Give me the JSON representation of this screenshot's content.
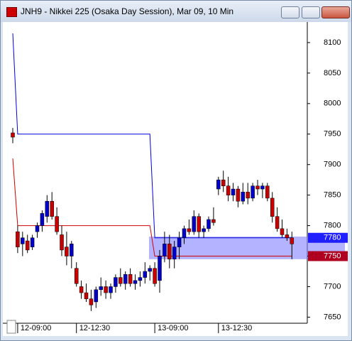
{
  "window_title": "JNH9 - Nikkei 225 (Osaka Day Session), Mar 09, 10 Min",
  "chart_data": {
    "type": "candlestick",
    "ylim": [
      7640,
      8129
    ],
    "yticks": [
      7650,
      7700,
      7750,
      7800,
      7850,
      7900,
      7950,
      8000,
      8050,
      8100
    ],
    "categories": [
      null,
      "12-09:00",
      null,
      null,
      null,
      null,
      null,
      null,
      null,
      null,
      null,
      null,
      null,
      "12-12:30",
      null,
      null,
      null,
      null,
      null,
      null,
      null,
      null,
      null,
      null,
      null,
      null,
      null,
      null,
      null,
      "13-09:00",
      null,
      null,
      null,
      null,
      null,
      null,
      null,
      null,
      null,
      null,
      null,
      null,
      "13-12:30",
      null,
      null,
      null,
      null,
      null,
      null,
      null,
      null,
      null,
      null,
      null,
      null,
      null,
      null,
      null
    ],
    "up_color": "#0000c8",
    "down_color": "#c80000",
    "open": [
      7952,
      7790,
      7770,
      7775,
      7765,
      7790,
      7800,
      7815,
      7840,
      7815,
      7785,
      7765,
      7750,
      7730,
      7700,
      7690,
      7680,
      7675,
      7695,
      7700,
      7690,
      7700,
      7715,
      7705,
      7720,
      7705,
      7710,
      7715,
      7725,
      7730,
      7710,
      7750,
      7770,
      7745,
      7765,
      7780,
      7795,
      7790,
      7815,
      7790,
      7795,
      7810,
      7860,
      7875,
      7865,
      7850,
      7860,
      7840,
      7855,
      7845,
      7865,
      7860,
      7865,
      7845,
      7815,
      7795,
      7785,
      7780
    ],
    "high": [
      7960,
      7800,
      7790,
      7785,
      7785,
      7805,
      7825,
      7850,
      7855,
      7830,
      7800,
      7790,
      7775,
      7740,
      7710,
      7705,
      7695,
      7700,
      7715,
      7710,
      7705,
      7720,
      7730,
      7725,
      7730,
      7720,
      7725,
      7740,
      7735,
      7740,
      7760,
      7790,
      7785,
      7775,
      7790,
      7800,
      7810,
      7825,
      7820,
      7800,
      7815,
      7830,
      7880,
      7890,
      7880,
      7870,
      7865,
      7870,
      7870,
      7870,
      7875,
      7870,
      7870,
      7855,
      7830,
      7810,
      7795,
      7790
    ],
    "low": [
      7935,
      7755,
      7750,
      7755,
      7760,
      7780,
      7790,
      7805,
      7810,
      7785,
      7750,
      7735,
      7730,
      7700,
      7680,
      7675,
      7660,
      7665,
      7685,
      7680,
      7680,
      7690,
      7700,
      7695,
      7700,
      7695,
      7700,
      7705,
      7710,
      7700,
      7690,
      7740,
      7730,
      7730,
      7745,
      7770,
      7785,
      7785,
      7780,
      7780,
      7790,
      7800,
      7850,
      7855,
      7840,
      7840,
      7830,
      7835,
      7835,
      7840,
      7850,
      7845,
      7840,
      7805,
      7790,
      7780,
      7775,
      7745
    ],
    "close": [
      7945,
      7765,
      7780,
      7760,
      7780,
      7800,
      7820,
      7840,
      7815,
      7790,
      7760,
      7750,
      7770,
      7705,
      7690,
      7680,
      7670,
      7695,
      7700,
      7690,
      7700,
      7715,
      7705,
      7720,
      7705,
      7710,
      7715,
      7725,
      7730,
      7705,
      7750,
      7770,
      7745,
      7765,
      7780,
      7795,
      7790,
      7815,
      7790,
      7795,
      7810,
      7805,
      7875,
      7865,
      7850,
      7860,
      7840,
      7855,
      7845,
      7865,
      7860,
      7865,
      7845,
      7815,
      7795,
      7785,
      7780,
      7770
    ],
    "lines": [
      {
        "color": "#0000e0",
        "values": [
          8115,
          7950,
          7950,
          7950,
          7950,
          7950,
          7950,
          7950,
          7950,
          7950,
          7950,
          7950,
          7950,
          7950,
          7950,
          7950,
          7950,
          7950,
          7950,
          7950,
          7950,
          7950,
          7950,
          7950,
          7950,
          7950,
          7950,
          7950,
          7950,
          7780,
          7780,
          7780,
          7780,
          7780,
          7780,
          7780,
          7780,
          7780,
          7780,
          7780,
          7780,
          7780,
          7780,
          7780,
          7780,
          7780,
          7780,
          7780,
          7780,
          7780,
          7780,
          7780,
          7780,
          7780,
          7780,
          7780,
          7780,
          7780
        ]
      },
      {
        "color": "#d00000",
        "values": [
          7910,
          7800,
          7800,
          7800,
          7800,
          7800,
          7800,
          7800,
          7800,
          7800,
          7800,
          7800,
          7800,
          7800,
          7800,
          7800,
          7800,
          7800,
          7800,
          7800,
          7800,
          7800,
          7800,
          7800,
          7800,
          7800,
          7800,
          7800,
          7800,
          7750,
          7750,
          7750,
          7750,
          7750,
          7750,
          7750,
          7750,
          7750,
          7750,
          7750,
          7750,
          7750,
          7750,
          7750,
          7750,
          7750,
          7750,
          7750,
          7750,
          7750,
          7750,
          7750,
          7750,
          7750,
          7750,
          7750,
          7750,
          7750
        ]
      }
    ],
    "band": [
      7745,
      7782
    ],
    "markers": [
      {
        "value": 7780,
        "color": "#2020ff"
      },
      {
        "value": 7750,
        "color": "#b00020"
      }
    ]
  }
}
